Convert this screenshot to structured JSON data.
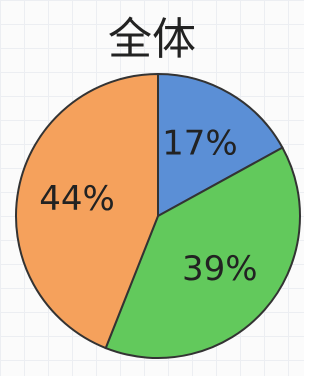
{
  "chart_data": {
    "type": "pie",
    "title": "全体",
    "values": [
      17,
      39,
      44
    ],
    "value_labels": [
      "17%",
      "39%",
      "44%"
    ],
    "colors": [
      "#5b8fd6",
      "#62c95c",
      "#f5a15c"
    ]
  }
}
